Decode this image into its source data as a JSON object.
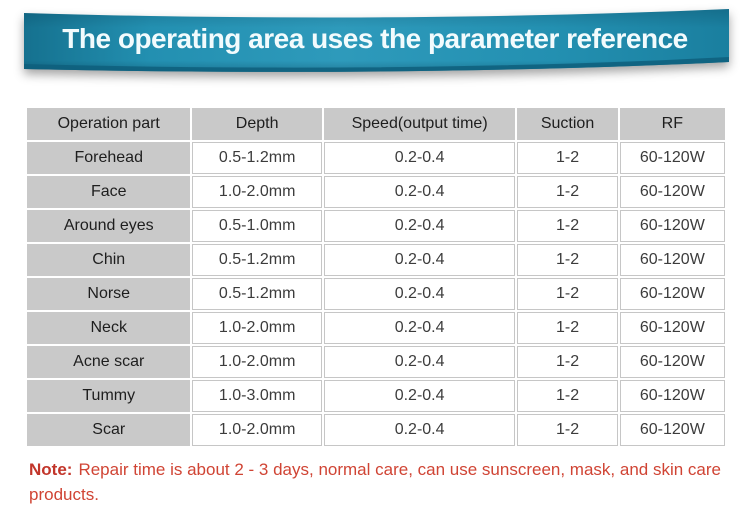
{
  "banner": {
    "title": "The operating area uses the parameter reference",
    "bg_color": "#2b93b4",
    "edge_color": "#15718f",
    "lip_color": "#0e5f7c",
    "text_color": "#f2fbfd"
  },
  "table": {
    "headers": [
      "Operation part",
      "Depth",
      "Speed(output time)",
      "Suction",
      "RF"
    ],
    "rows": [
      [
        "Forehead",
        "0.5-1.2mm",
        "0.2-0.4",
        "1-2",
        "60-120W"
      ],
      [
        "Face",
        "1.0-2.0mm",
        "0.2-0.4",
        "1-2",
        "60-120W"
      ],
      [
        "Around eyes",
        "0.5-1.0mm",
        "0.2-0.4",
        "1-2",
        "60-120W"
      ],
      [
        "Chin",
        "0.5-1.2mm",
        "0.2-0.4",
        "1-2",
        "60-120W"
      ],
      [
        "Norse",
        "0.5-1.2mm",
        "0.2-0.4",
        "1-2",
        "60-120W"
      ],
      [
        "Neck",
        "1.0-2.0mm",
        "0.2-0.4",
        "1-2",
        "60-120W"
      ],
      [
        "Acne scar",
        "1.0-2.0mm",
        "0.2-0.4",
        "1-2",
        "60-120W"
      ],
      [
        "Tummy",
        "1.0-3.0mm",
        "0.2-0.4",
        "1-2",
        "60-120W"
      ],
      [
        "Scar",
        "1.0-2.0mm",
        "0.2-0.4",
        "1-2",
        "60-120W"
      ]
    ],
    "header_bg": "#c9c9c9",
    "label_col_bg": "#c9c9c9"
  },
  "note": {
    "label": "Note:",
    "text": "Repair time is about 2 - 3 days, normal care, can use sunscreen, mask, and skin care products.",
    "color": "#d04434"
  }
}
